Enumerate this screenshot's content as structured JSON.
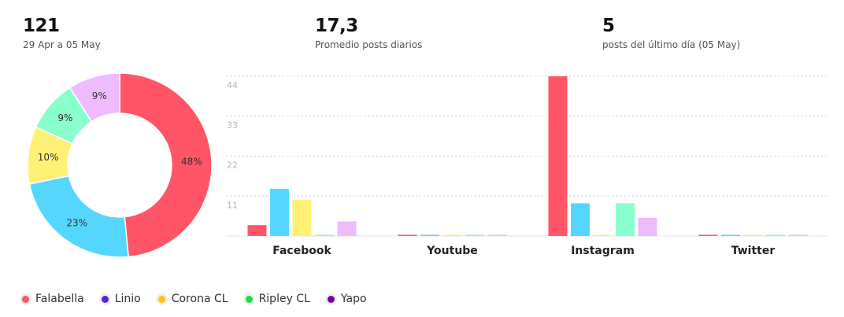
{
  "stats": {
    "total": {
      "value": "121",
      "label": "29 Apr a 05 May"
    },
    "average": {
      "value": "17,3",
      "label": "Promedio posts diarios"
    },
    "last_day": {
      "value": "5",
      "label": "posts del último día (05 May)"
    }
  },
  "colors": {
    "Falabella": "#ff5566",
    "Linio": "#55d6ff",
    "Corona CL": "#fff176",
    "Ripley CL": "#88ffcc",
    "Yapo": "#eebbff"
  },
  "legend": [
    {
      "name": "Falabella",
      "color": "#ff5566"
    },
    {
      "name": "Linio",
      "color": "#5522dd"
    },
    {
      "name": "Corona CL",
      "color": "#ffc21a"
    },
    {
      "name": "Ripley CL",
      "color": "#22dd44"
    },
    {
      "name": "Yapo",
      "color": "#770099"
    }
  ],
  "chart_data": [
    {
      "type": "pie",
      "donut": true,
      "labels": [
        "Falabella",
        "Linio",
        "Corona CL",
        "Ripley CL",
        "Yapo"
      ],
      "values": [
        48,
        23,
        10,
        9,
        9
      ],
      "value_labels": [
        "48%",
        "23%",
        "10%",
        "9%",
        "9%"
      ]
    },
    {
      "type": "bar",
      "categories": [
        "Facebook",
        "Youtube",
        "Instagram",
        "Twitter"
      ],
      "series": [
        {
          "name": "Falabella",
          "values": [
            3,
            0,
            44,
            0
          ]
        },
        {
          "name": "Linio",
          "values": [
            13,
            0,
            9,
            0
          ]
        },
        {
          "name": "Corona CL",
          "values": [
            10,
            0,
            0,
            0
          ]
        },
        {
          "name": "Ripley CL",
          "values": [
            0,
            0,
            9,
            0
          ]
        },
        {
          "name": "Yapo",
          "values": [
            4,
            0,
            5,
            0
          ]
        }
      ],
      "yticks": [
        "11",
        "22",
        "33",
        "44"
      ],
      "ylim": [
        0,
        44
      ],
      "grid": true
    }
  ]
}
